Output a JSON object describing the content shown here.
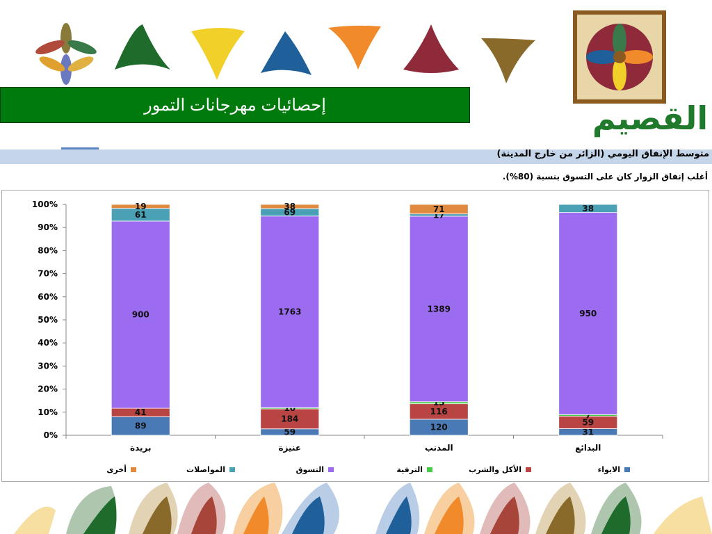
{
  "header": {
    "title": "إحصائيات مهرجانات التمور",
    "logo_text": "القصيم"
  },
  "section": {
    "title": "متوسط الإنفاق اليومي (الزائر من خارج المدينة)",
    "note": "أغلب إنفاق الزوار كان على التسوق بنسبة (80%)."
  },
  "colors": {
    "title_bar": "#007a0c",
    "band": "#c5d5ea",
    "lodging": "#4a7ab5",
    "food": "#b84444",
    "entertainment": "#47cc47",
    "shopping": "#9b6bf0",
    "transport": "#4aa0b5",
    "other": "#e08a40"
  },
  "chart_data": {
    "type": "bar",
    "stacked": true,
    "normalized": true,
    "categories": [
      "بريدة",
      "عنيزة",
      "المذنب",
      "البدائع"
    ],
    "series": [
      {
        "name": "الايواء",
        "color": "#4a7ab5",
        "values": [
          89,
          59,
          120,
          31
        ]
      },
      {
        "name": "الأكل والشرب",
        "color": "#b84444",
        "values": [
          41,
          184,
          116,
          59
        ]
      },
      {
        "name": "الترفية",
        "color": "#47cc47",
        "values": [
          0,
          10,
          15,
          7
        ]
      },
      {
        "name": "التسوق",
        "color": "#9b6bf0",
        "values": [
          900,
          1763,
          1389,
          950
        ]
      },
      {
        "name": "المواصلات",
        "color": "#4aa0b5",
        "values": [
          61,
          69,
          17,
          38
        ]
      },
      {
        "name": "أخرى",
        "color": "#e08a40",
        "values": [
          19,
          38,
          71,
          0
        ]
      }
    ],
    "data_labels": [
      [
        "89",
        "41",
        "",
        "900",
        "61",
        "19"
      ],
      [
        "59",
        "184",
        "10",
        "1763",
        "69",
        "38"
      ],
      [
        "120",
        "116",
        "15",
        "1389",
        "17",
        "71"
      ],
      [
        "31",
        "59",
        "7",
        "950",
        "38",
        ""
      ]
    ],
    "y_ticks": [
      "0%",
      "10%",
      "20%",
      "30%",
      "40%",
      "50%",
      "60%",
      "70%",
      "80%",
      "90%",
      "100%"
    ],
    "ylim": [
      0,
      100
    ],
    "legend_position": "bottom",
    "grid": false
  }
}
